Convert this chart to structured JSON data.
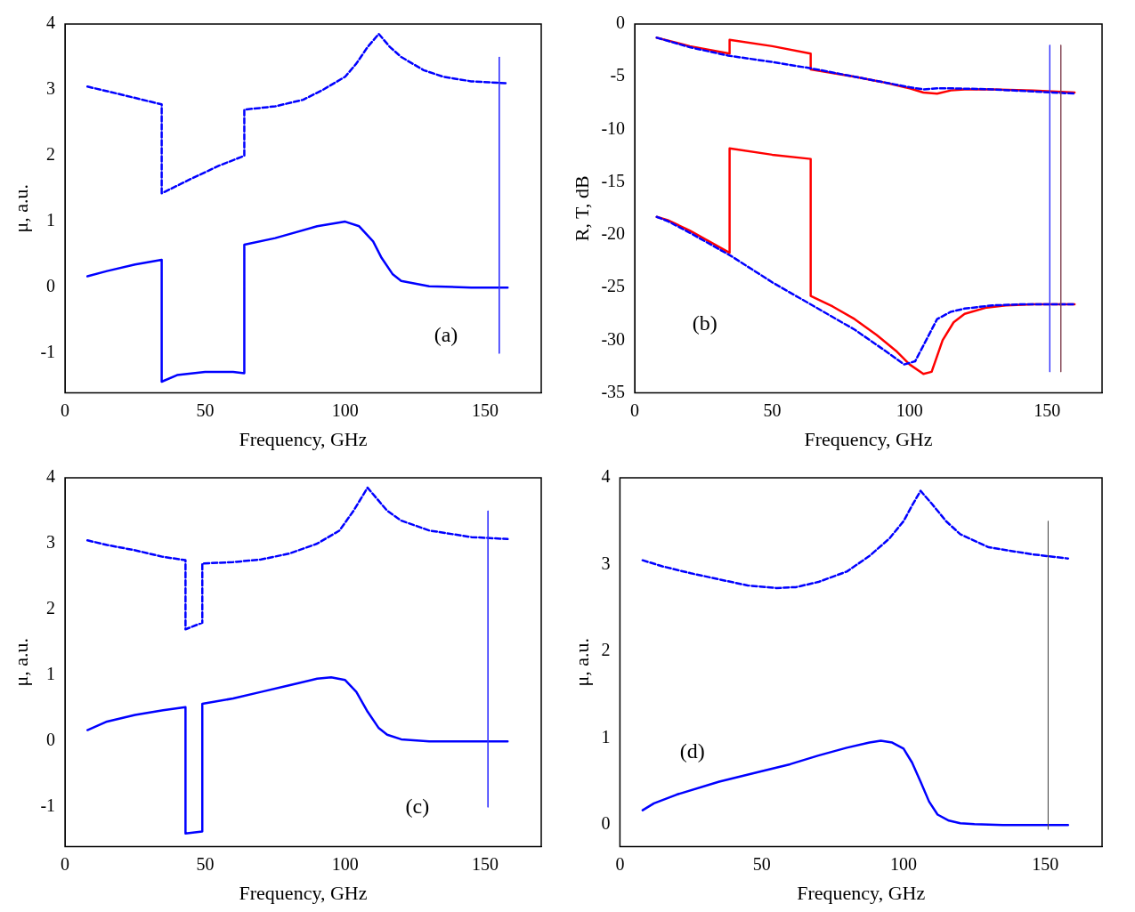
{
  "chart_data": [
    {
      "type": "line",
      "xlabel": "Frequency, GHz",
      "ylabel": "μ, a.u.",
      "annotations": [
        "(a)"
      ],
      "xlim": [
        0,
        170
      ],
      "xticks": [
        0,
        50,
        100,
        150
      ],
      "ylim": [
        -1.6,
        4
      ],
      "yticks": [
        -1,
        0,
        1,
        2,
        3,
        4
      ],
      "grid": false,
      "legend": false,
      "marker": "none",
      "series": [
        {
          "color": "#0000ff",
          "line_style": "solid",
          "x": [
            8,
            15,
            25,
            34.5,
            34.5,
            40,
            50,
            60,
            64,
            64,
            75,
            90,
            100,
            105,
            110,
            113,
            117,
            120,
            130,
            145,
            158
          ],
          "values": [
            0.17,
            0.25,
            0.35,
            0.42,
            -1.43,
            -1.33,
            -1.28,
            -1.28,
            -1.3,
            0.65,
            0.75,
            0.93,
            1.0,
            0.93,
            0.7,
            0.45,
            0.2,
            0.1,
            0.02,
            0,
            0
          ]
        },
        {
          "color": "#0000ff",
          "line_style": "dashed",
          "x": [
            8,
            20,
            34.5,
            34.5,
            45,
            55,
            64,
            64,
            75,
            85,
            92,
            100,
            104,
            108,
            112,
            116,
            120,
            128,
            135,
            145,
            158
          ],
          "values": [
            3.05,
            2.93,
            2.78,
            1.43,
            1.65,
            1.85,
            2.0,
            2.7,
            2.75,
            2.85,
            3.0,
            3.2,
            3.4,
            3.65,
            3.85,
            3.65,
            3.5,
            3.3,
            3.2,
            3.13,
            3.1
          ]
        },
        {
          "color": "#3333ff",
          "line_style": "solid",
          "x": [
            155,
            155
          ],
          "values": [
            3.5,
            -1
          ]
        }
      ]
    },
    {
      "type": "line",
      "xlabel": "Frequency, GHz",
      "ylabel": "R, T, dB",
      "annotations": [
        "(b)"
      ],
      "xlim": [
        0,
        170
      ],
      "xticks": [
        0,
        50,
        100,
        150
      ],
      "ylim": [
        -35,
        0
      ],
      "yticks": [
        -35,
        -30,
        -25,
        -20,
        -15,
        -10,
        -5,
        0
      ],
      "grid": false,
      "legend": false,
      "marker": "none",
      "series": [
        {
          "color": "#ff0000",
          "line_style": "solid",
          "x": [
            8,
            20,
            34.5,
            34.5,
            50,
            64,
            64,
            80,
            90,
            100,
            105,
            110,
            115,
            120,
            130,
            145,
            160
          ],
          "values": [
            -1.3,
            -2.1,
            -2.8,
            -1.5,
            -2.1,
            -2.8,
            -4.3,
            -5.0,
            -5.5,
            -6.1,
            -6.5,
            -6.6,
            -6.3,
            -6.2,
            -6.2,
            -6.3,
            -6.5
          ]
        },
        {
          "color": "#0000ff",
          "line_style": "dashed",
          "x": [
            8,
            20,
            34,
            50,
            64,
            80,
            90,
            100,
            105,
            110,
            115,
            130,
            145,
            160
          ],
          "values": [
            -1.3,
            -2.2,
            -3.0,
            -3.6,
            -4.2,
            -5.0,
            -5.5,
            -6.0,
            -6.2,
            -6.1,
            -6.1,
            -6.2,
            -6.4,
            -6.6
          ]
        },
        {
          "color": "#ff0000",
          "line_style": "solid",
          "x": [
            8,
            12,
            20,
            34.5,
            34.5,
            50,
            64,
            64,
            72,
            80,
            88,
            95,
            100,
            105,
            108,
            112,
            116,
            120,
            128,
            135,
            145,
            160
          ],
          "values": [
            -18.3,
            -18.6,
            -19.6,
            -21.7,
            -11.8,
            -12.4,
            -12.8,
            -25.8,
            -26.8,
            -28.0,
            -29.5,
            -31.0,
            -32.3,
            -33.2,
            -33.0,
            -30.0,
            -28.3,
            -27.5,
            -26.9,
            -26.7,
            -26.6,
            -26.6
          ]
        },
        {
          "color": "#0000ff",
          "line_style": "dashed",
          "x": [
            8,
            12,
            20,
            35,
            50,
            60,
            70,
            80,
            90,
            98,
            102,
            106,
            110,
            115,
            120,
            130,
            140,
            160
          ],
          "values": [
            -18.3,
            -18.7,
            -19.8,
            -22.0,
            -24.5,
            -26.0,
            -27.5,
            -29.0,
            -30.8,
            -32.3,
            -32.0,
            -30.0,
            -28.0,
            -27.3,
            -27.0,
            -26.7,
            -26.6,
            -26.6
          ]
        },
        {
          "color": "#3333ff",
          "line_style": "solid",
          "x": [
            151,
            151
          ],
          "values": [
            -2,
            -33
          ]
        },
        {
          "color": "#804050",
          "line_style": "solid",
          "x": [
            155,
            155
          ],
          "values": [
            -2,
            -33
          ]
        }
      ]
    },
    {
      "type": "line",
      "xlabel": "Frequency, GHz",
      "ylabel": "μ, a.u.",
      "annotations": [
        "(c)"
      ],
      "xlim": [
        0,
        170
      ],
      "xticks": [
        0,
        50,
        100,
        150
      ],
      "ylim": [
        -1.6,
        4
      ],
      "yticks": [
        -1,
        0,
        1,
        2,
        3,
        4
      ],
      "grid": false,
      "legend": false,
      "marker": "none",
      "series": [
        {
          "color": "#0000ff",
          "line_style": "solid",
          "x": [
            8,
            15,
            25,
            35,
            43,
            43,
            49,
            49,
            60,
            70,
            80,
            90,
            95,
            100,
            104,
            108,
            112,
            115,
            120,
            130,
            145,
            158
          ],
          "values": [
            0.17,
            0.3,
            0.4,
            0.47,
            0.52,
            -1.4,
            -1.37,
            0.57,
            0.65,
            0.75,
            0.85,
            0.95,
            0.97,
            0.93,
            0.75,
            0.45,
            0.2,
            0.1,
            0.03,
            0,
            0,
            0
          ]
        },
        {
          "color": "#0000ff",
          "line_style": "dashed",
          "x": [
            8,
            15,
            25,
            35,
            43,
            43,
            49,
            49,
            60,
            70,
            80,
            90,
            98,
            103,
            108,
            112,
            115,
            120,
            130,
            145,
            158
          ],
          "values": [
            3.05,
            2.98,
            2.9,
            2.8,
            2.75,
            1.7,
            1.8,
            2.7,
            2.72,
            2.76,
            2.85,
            3.0,
            3.2,
            3.5,
            3.85,
            3.65,
            3.5,
            3.35,
            3.2,
            3.1,
            3.07
          ]
        },
        {
          "color": "#3333ff",
          "line_style": "solid",
          "x": [
            151,
            151
          ],
          "values": [
            3.5,
            -1
          ]
        }
      ]
    },
    {
      "type": "line",
      "xlabel": "Frequency, GHz",
      "ylabel": "μ, a.u.",
      "annotations": [
        "(d)"
      ],
      "xlim": [
        0,
        170
      ],
      "xticks": [
        0,
        50,
        100,
        150
      ],
      "ylim": [
        -0.25,
        4
      ],
      "yticks": [
        0,
        1,
        2,
        3,
        4
      ],
      "grid": false,
      "legend": false,
      "marker": "none",
      "series": [
        {
          "color": "#0000ff",
          "line_style": "solid",
          "x": [
            8,
            12,
            20,
            35,
            50,
            60,
            70,
            80,
            88,
            92,
            96,
            100,
            103,
            106,
            109,
            112,
            116,
            120,
            125,
            135,
            145,
            158
          ],
          "values": [
            0.17,
            0.25,
            0.35,
            0.5,
            0.62,
            0.7,
            0.8,
            0.89,
            0.95,
            0.97,
            0.95,
            0.88,
            0.72,
            0.5,
            0.27,
            0.12,
            0.05,
            0.02,
            0.01,
            0,
            0,
            0
          ]
        },
        {
          "color": "#0000ff",
          "line_style": "dashed",
          "x": [
            8,
            15,
            25,
            35,
            45,
            55,
            62,
            70,
            80,
            88,
            95,
            100,
            103,
            106,
            110,
            115,
            120,
            130,
            145,
            158
          ],
          "values": [
            3.05,
            2.98,
            2.9,
            2.83,
            2.76,
            2.73,
            2.74,
            2.8,
            2.92,
            3.1,
            3.3,
            3.5,
            3.68,
            3.85,
            3.7,
            3.5,
            3.35,
            3.2,
            3.12,
            3.07
          ]
        },
        {
          "color": "#555555",
          "line_style": "solid",
          "x": [
            151,
            151
          ],
          "values": [
            3.5,
            -0.05
          ]
        }
      ]
    }
  ]
}
